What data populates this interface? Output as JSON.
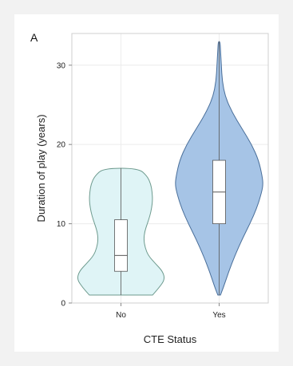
{
  "colors": {
    "background": "#f2f2f2",
    "panel": "#ffffff",
    "grid": "#ececec",
    "axis": "#cfcfcf",
    "violin_no_fill": "#dff4f6",
    "violin_no_stroke": "#6d9a8e",
    "violin_yes_fill": "#a6c4e6",
    "violin_yes_stroke": "#4a6f9a",
    "box_fill": "#ffffff",
    "box_stroke": "#555555"
  },
  "chart_data": {
    "type": "violin",
    "panel_label": "A",
    "xlabel": "CTE Status",
    "ylabel": "Duration of play (years)",
    "categories": [
      "No",
      "Yes"
    ],
    "ylim": [
      0,
      34
    ],
    "yticks": [
      0,
      10,
      20,
      30
    ],
    "grid": true,
    "violins": [
      {
        "category": "No",
        "min": 1,
        "max": 17,
        "q1": 4,
        "median": 6,
        "q3": 10.5,
        "density_profile": [
          [
            1,
            0.72
          ],
          [
            2,
            0.88
          ],
          [
            3,
            1.0
          ],
          [
            4,
            0.95
          ],
          [
            5,
            0.78
          ],
          [
            6,
            0.62
          ],
          [
            7,
            0.55
          ],
          [
            8,
            0.52
          ],
          [
            9,
            0.54
          ],
          [
            10,
            0.6
          ],
          [
            11,
            0.66
          ],
          [
            12,
            0.7
          ],
          [
            13,
            0.72
          ],
          [
            14,
            0.71
          ],
          [
            15,
            0.68
          ],
          [
            16,
            0.6
          ],
          [
            17,
            0.4
          ]
        ]
      },
      {
        "category": "Yes",
        "min": 1,
        "max": 33,
        "q1": 10,
        "median": 14,
        "q3": 18,
        "density_profile": [
          [
            1,
            0.03
          ],
          [
            2,
            0.1
          ],
          [
            4,
            0.22
          ],
          [
            6,
            0.36
          ],
          [
            8,
            0.52
          ],
          [
            10,
            0.7
          ],
          [
            12,
            0.86
          ],
          [
            14,
            0.97
          ],
          [
            15,
            1.0
          ],
          [
            16,
            0.98
          ],
          [
            18,
            0.9
          ],
          [
            20,
            0.74
          ],
          [
            22,
            0.52
          ],
          [
            24,
            0.3
          ],
          [
            26,
            0.14
          ],
          [
            28,
            0.07
          ],
          [
            30,
            0.05
          ],
          [
            31,
            0.04
          ],
          [
            32,
            0.03
          ],
          [
            33,
            0.02
          ]
        ]
      }
    ]
  }
}
